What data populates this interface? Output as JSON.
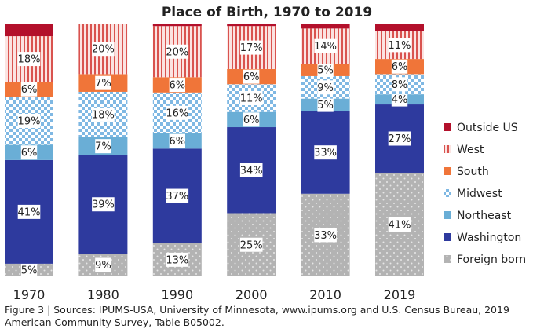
{
  "chart_data": {
    "type": "bar",
    "stacked": true,
    "title": "Place of Birth, 1970 to 2019",
    "categories": [
      "1970",
      "1980",
      "1990",
      "2000",
      "2010",
      "2019"
    ],
    "series": [
      {
        "name": "Foreign born",
        "values": [
          5,
          9,
          13,
          25,
          33,
          41
        ],
        "color": "#b3b3b3",
        "pattern": "dots",
        "labels": [
          "5%",
          "9%",
          "13%",
          "25%",
          "33%",
          "41%"
        ]
      },
      {
        "name": "Washington",
        "values": [
          41,
          39,
          37,
          34,
          33,
          27
        ],
        "color": "#2e3a9e",
        "pattern": "solid",
        "labels": [
          "41%",
          "39%",
          "37%",
          "34%",
          "33%",
          "27%"
        ]
      },
      {
        "name": "Northeast",
        "values": [
          6,
          7,
          6,
          6,
          5,
          4
        ],
        "color": "#6aaed6",
        "pattern": "solid",
        "labels": [
          "6%",
          "7%",
          "6%",
          "6%",
          "5%",
          "4%"
        ]
      },
      {
        "name": "Midwest",
        "values": [
          19,
          18,
          16,
          11,
          9,
          8
        ],
        "color": "#5ba3d9",
        "pattern": "checker",
        "labels": [
          "19%",
          "18%",
          "16%",
          "11%",
          "9%",
          "8%"
        ]
      },
      {
        "name": "South",
        "values": [
          6,
          7,
          6,
          6,
          5,
          6
        ],
        "color": "#f07539",
        "pattern": "solid",
        "labels": [
          "6%",
          "7%",
          "6%",
          "6%",
          "5%",
          "6%"
        ]
      },
      {
        "name": "West",
        "values": [
          18,
          20,
          20,
          17,
          14,
          11
        ],
        "color": "#d9534f",
        "pattern": "stripes",
        "labels": [
          "18%",
          "20%",
          "20%",
          "17%",
          "14%",
          "11%"
        ]
      },
      {
        "name": "Outside US",
        "values": [
          5,
          0,
          1,
          1,
          2,
          3
        ],
        "color": "#b3102b",
        "pattern": "solid",
        "labels": [
          "",
          "",
          "",
          "",
          "",
          ""
        ]
      }
    ],
    "ylim": [
      0,
      100
    ],
    "grid": false,
    "legend_position": "right",
    "legend_order": [
      "Outside US",
      "West",
      "South",
      "Midwest",
      "Northeast",
      "Washington",
      "Foreign born"
    ]
  },
  "caption": {
    "line1": "Figure 3 | Sources: IPUMS-USA, University of Minnesota, www.ipums.org and U.S. Census Bureau, 2019",
    "line2": "American Community Survey, Table B05002."
  }
}
